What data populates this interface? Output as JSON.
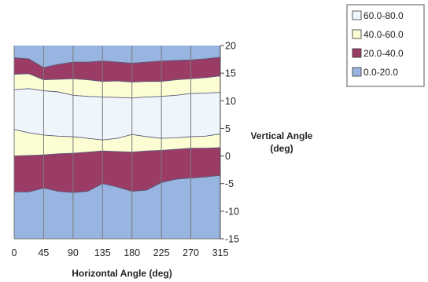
{
  "chart_data": {
    "type": "area",
    "xlabel": "Horizontal Angle (deg)",
    "ylabel_line1": "Vertical Angle",
    "ylabel_line2": "(deg)",
    "x": [
      0,
      22.5,
      45,
      67.5,
      90,
      112.5,
      135,
      157.5,
      180,
      202.5,
      225,
      247.5,
      270,
      292.5,
      315
    ],
    "xticks": [
      "0",
      "45",
      "90",
      "135",
      "180",
      "225",
      "270",
      "315"
    ],
    "xtick_values": [
      0,
      45,
      90,
      135,
      180,
      225,
      270,
      315
    ],
    "xlim": [
      0,
      315
    ],
    "ylim": [
      -15,
      20
    ],
    "yticks": [
      "20",
      "15",
      "10",
      "5",
      "0",
      "-5",
      "-10",
      "-15"
    ],
    "ytick_values": [
      20,
      15,
      10,
      5,
      0,
      -5,
      -10,
      -15
    ],
    "grid": "vertical",
    "legend_position": "top-right",
    "bands": [
      {
        "name": "60.0-80.0",
        "color": "#eef6fc"
      },
      {
        "name": "40.0-60.0",
        "color": "#fdfdd4"
      },
      {
        "name": "20.0-40.0",
        "color": "#9b3c66"
      },
      {
        "name": "0.0-20.0",
        "color": "#98b4e0"
      }
    ],
    "contours": {
      "lower_0_20": [
        -6.5,
        -6.5,
        -5.8,
        -6.4,
        -6.6,
        -6.4,
        -5.0,
        -5.6,
        -6.4,
        -6.2,
        -4.8,
        -4.2,
        -4.0,
        -3.8,
        -3.5
      ],
      "lower_20_40": [
        0.0,
        0.1,
        0.2,
        0.4,
        0.5,
        0.7,
        0.9,
        0.8,
        0.7,
        0.9,
        1.0,
        1.2,
        1.4,
        1.4,
        1.5
      ],
      "lower_40_60": [
        4.8,
        4.2,
        3.8,
        3.6,
        3.5,
        3.2,
        2.9,
        3.2,
        3.9,
        3.5,
        3.2,
        3.3,
        3.5,
        3.6,
        4.0
      ],
      "upper_40_60": [
        12.0,
        12.2,
        11.8,
        11.6,
        11.0,
        10.8,
        10.7,
        10.6,
        10.5,
        10.7,
        10.8,
        11.0,
        11.3,
        11.4,
        11.5
      ],
      "upper_20_40": [
        14.8,
        14.9,
        13.8,
        13.9,
        14.0,
        13.8,
        13.5,
        13.6,
        13.4,
        13.5,
        13.5,
        13.8,
        14.0,
        14.2,
        14.5
      ],
      "upper_0_20": [
        17.8,
        17.6,
        16.0,
        16.6,
        17.0,
        17.0,
        17.2,
        17.0,
        16.8,
        17.0,
        17.2,
        17.3,
        17.4,
        17.6,
        17.9
      ]
    }
  }
}
